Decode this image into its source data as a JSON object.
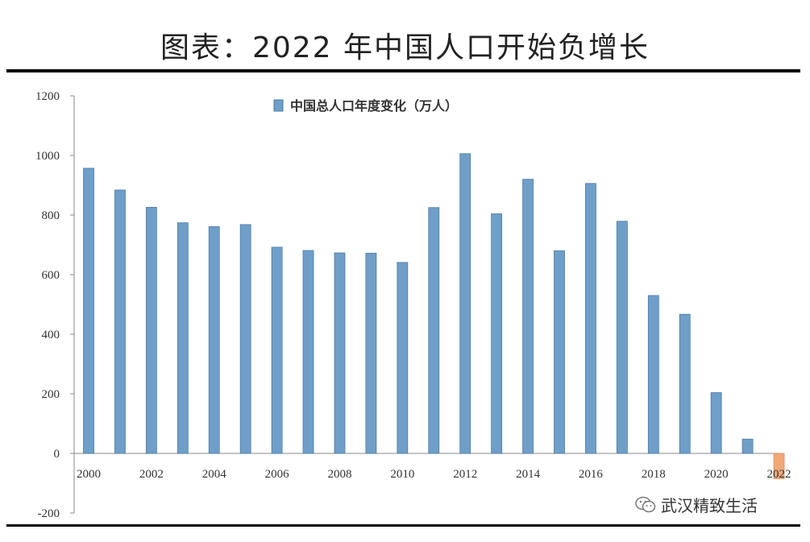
{
  "title": "图表：2022 年中国人口开始负增长",
  "watermark": "武汉精致生活",
  "colors": {
    "bar": "#6f9fc8",
    "bar_stroke": "#4a7ba6",
    "negative_bar": "#f0a878",
    "axis": "#888888"
  },
  "chart_data": {
    "type": "bar",
    "legend": "中国总人口年度变化（万人）",
    "legend_position": "top-center",
    "categories": [
      "2000",
      "2001",
      "2002",
      "2003",
      "2004",
      "2005",
      "2006",
      "2007",
      "2008",
      "2009",
      "2010",
      "2011",
      "2012",
      "2013",
      "2014",
      "2015",
      "2016",
      "2017",
      "2018",
      "2019",
      "2020",
      "2021",
      "2022"
    ],
    "values": [
      957,
      884,
      826,
      774,
      761,
      768,
      692,
      681,
      673,
      672,
      641,
      825,
      1006,
      804,
      920,
      680,
      906,
      779,
      530,
      467,
      204,
      48,
      -85
    ],
    "x_tick_labels": [
      "2000",
      "2002",
      "2004",
      "2006",
      "2008",
      "2010",
      "2012",
      "2014",
      "2016",
      "2018",
      "2020",
      "2022"
    ],
    "y_ticks": [
      1200,
      1000,
      800,
      600,
      400,
      200,
      0,
      -200
    ],
    "ylim": [
      -200,
      1200
    ],
    "grid": false
  }
}
